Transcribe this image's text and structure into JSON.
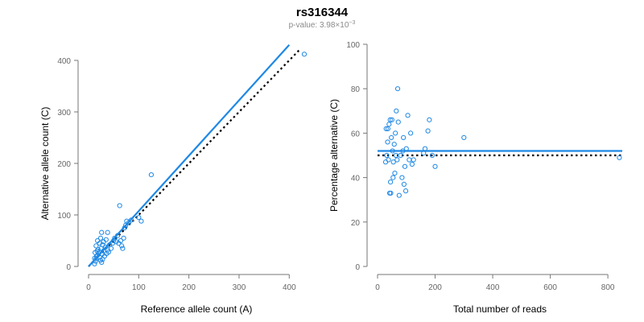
{
  "title": "rs316344",
  "subtitle": {
    "prefix": "p-value: 3.98×10",
    "exponent": "−3"
  },
  "colors": {
    "points": "#1e88e5",
    "fit_line": "#1e88e5",
    "reference_line": "#000000",
    "axis": "#777777",
    "tick_label": "#666666",
    "subtitle": "#8a8a8a"
  },
  "chart_data": [
    {
      "type": "scatter",
      "title": "",
      "xlabel": "Reference allele count (A)",
      "ylabel": "Alternative allele count (C)",
      "xlim": [
        0,
        430
      ],
      "ylim": [
        0,
        400
      ],
      "xticks": [
        "0",
        "100",
        "200",
        "300",
        "400"
      ],
      "yticks": [
        "0",
        "100",
        "200",
        "300",
        "400"
      ],
      "grid": false,
      "points": [
        [
          12,
          5
        ],
        [
          14,
          10
        ],
        [
          15,
          15
        ],
        [
          16,
          20
        ],
        [
          18,
          22
        ],
        [
          20,
          25
        ],
        [
          22,
          18
        ],
        [
          24,
          12
        ],
        [
          26,
          8
        ],
        [
          28,
          14
        ],
        [
          13,
          27
        ],
        [
          17,
          30
        ],
        [
          19,
          33
        ],
        [
          21,
          28
        ],
        [
          25,
          35
        ],
        [
          27,
          24
        ],
        [
          30,
          30
        ],
        [
          32,
          20
        ],
        [
          34,
          38
        ],
        [
          36,
          25
        ],
        [
          12,
          16
        ],
        [
          15,
          40
        ],
        [
          18,
          50
        ],
        [
          22,
          45
        ],
        [
          24,
          55
        ],
        [
          28,
          42
        ],
        [
          30,
          48
        ],
        [
          35,
          52
        ],
        [
          38,
          32
        ],
        [
          40,
          28
        ],
        [
          26,
          66
        ],
        [
          38,
          66
        ],
        [
          42,
          42
        ],
        [
          45,
          35
        ],
        [
          48,
          45
        ],
        [
          50,
          50
        ],
        [
          52,
          55
        ],
        [
          55,
          48
        ],
        [
          58,
          60
        ],
        [
          60,
          45
        ],
        [
          62,
          118
        ],
        [
          64,
          50
        ],
        [
          66,
          40
        ],
        [
          68,
          35
        ],
        [
          70,
          55
        ],
        [
          72,
          75
        ],
        [
          74,
          80
        ],
        [
          76,
          88
        ],
        [
          80,
          85
        ],
        [
          85,
          90
        ],
        [
          100,
          95
        ],
        [
          105,
          88
        ],
        [
          125,
          178
        ],
        [
          430,
          412
        ]
      ],
      "fit_line": {
        "from": [
          0,
          0
        ],
        "to": [
          400,
          430
        ]
      },
      "reference_line": {
        "from": [
          0,
          0
        ],
        "to": [
          420,
          420
        ],
        "style": "dotted"
      }
    },
    {
      "type": "scatter",
      "title": "",
      "xlabel": "Total number of reads",
      "ylabel": "Percentage alternative (C)",
      "xlim": [
        0,
        850
      ],
      "ylim": [
        0,
        100
      ],
      "xticks": [
        "0",
        "200",
        "400",
        "600",
        "800"
      ],
      "yticks": [
        "0",
        "20",
        "40",
        "60",
        "80",
        "100"
      ],
      "grid": false,
      "points": [
        [
          30,
          62
        ],
        [
          35,
          56
        ],
        [
          38,
          48
        ],
        [
          40,
          64
        ],
        [
          42,
          33
        ],
        [
          45,
          38
        ],
        [
          48,
          58
        ],
        [
          50,
          66
        ],
        [
          52,
          52
        ],
        [
          55,
          47
        ],
        [
          58,
          55
        ],
        [
          60,
          42
        ],
        [
          62,
          60
        ],
        [
          65,
          70
        ],
        [
          68,
          48
        ],
        [
          70,
          80
        ],
        [
          72,
          65
        ],
        [
          75,
          32
        ],
        [
          80,
          50
        ],
        [
          85,
          40
        ],
        [
          88,
          52
        ],
        [
          90,
          58
        ],
        [
          92,
          37
        ],
        [
          95,
          45
        ],
        [
          98,
          34
        ],
        [
          100,
          53
        ],
        [
          105,
          68
        ],
        [
          110,
          48
        ],
        [
          115,
          60
        ],
        [
          120,
          46
        ],
        [
          125,
          48
        ],
        [
          160,
          51
        ],
        [
          165,
          53
        ],
        [
          175,
          61
        ],
        [
          180,
          66
        ],
        [
          190,
          50
        ],
        [
          200,
          45
        ],
        [
          300,
          58
        ],
        [
          840,
          49
        ],
        [
          28,
          47
        ],
        [
          32,
          50
        ],
        [
          36,
          62
        ],
        [
          44,
          66
        ],
        [
          46,
          33
        ],
        [
          54,
          40
        ],
        [
          64,
          50
        ]
      ],
      "fit_line": {
        "from": [
          0,
          52
        ],
        "to": [
          850,
          52
        ]
      },
      "reference_line": {
        "from": [
          0,
          50
        ],
        "to": [
          850,
          50
        ],
        "style": "dotted"
      }
    }
  ]
}
